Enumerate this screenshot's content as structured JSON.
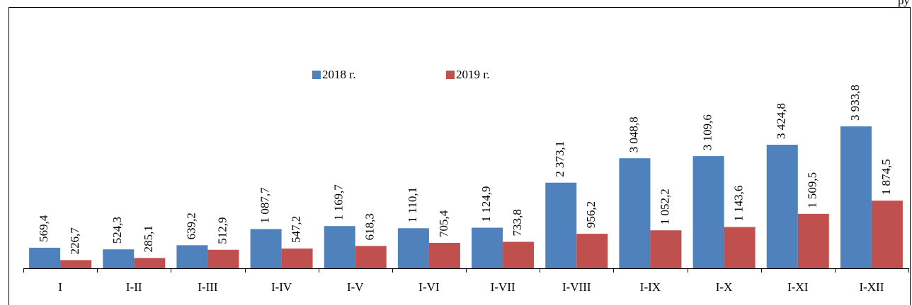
{
  "chart_data": {
    "type": "bar",
    "unit": "ру",
    "categories": [
      "I",
      "I-II",
      "I-III",
      "I-IV",
      "I-V",
      "I-VI",
      "I-VII",
      "I-VIII",
      "I-IX",
      "I-X",
      "I-XI",
      "I-XII"
    ],
    "series": [
      {
        "name": "2018 г.",
        "color": "#4f81bd",
        "values": [
          569.4,
          524.3,
          639.2,
          1087.7,
          1169.7,
          1110.1,
          1124.9,
          2373.1,
          3048.8,
          3109.6,
          3424.8,
          3933.8
        ],
        "value_labels": [
          "569,4",
          "524,3",
          "639,2",
          "1 087,7",
          "1 169,7",
          "1 110,1",
          "1 124,9",
          "2 373,1",
          "3 048,8",
          "3 109,6",
          "3 424,8",
          "3 933,8"
        ]
      },
      {
        "name": "2019 г.",
        "color": "#c0504d",
        "values": [
          226.7,
          285.1,
          512.9,
          547.2,
          618.3,
          705.4,
          733.8,
          956.2,
          1052.2,
          1143.6,
          1509.5,
          1874.5
        ],
        "value_labels": [
          "226,7",
          "285,1",
          "512,9",
          "547,2",
          "618,3",
          "705,4",
          "733,8",
          "956,2",
          "1 052,2",
          "1 143,6",
          "1 509,5",
          "1 874,5"
        ]
      }
    ],
    "ylim": [
      0,
      4000
    ],
    "legend": "top"
  }
}
